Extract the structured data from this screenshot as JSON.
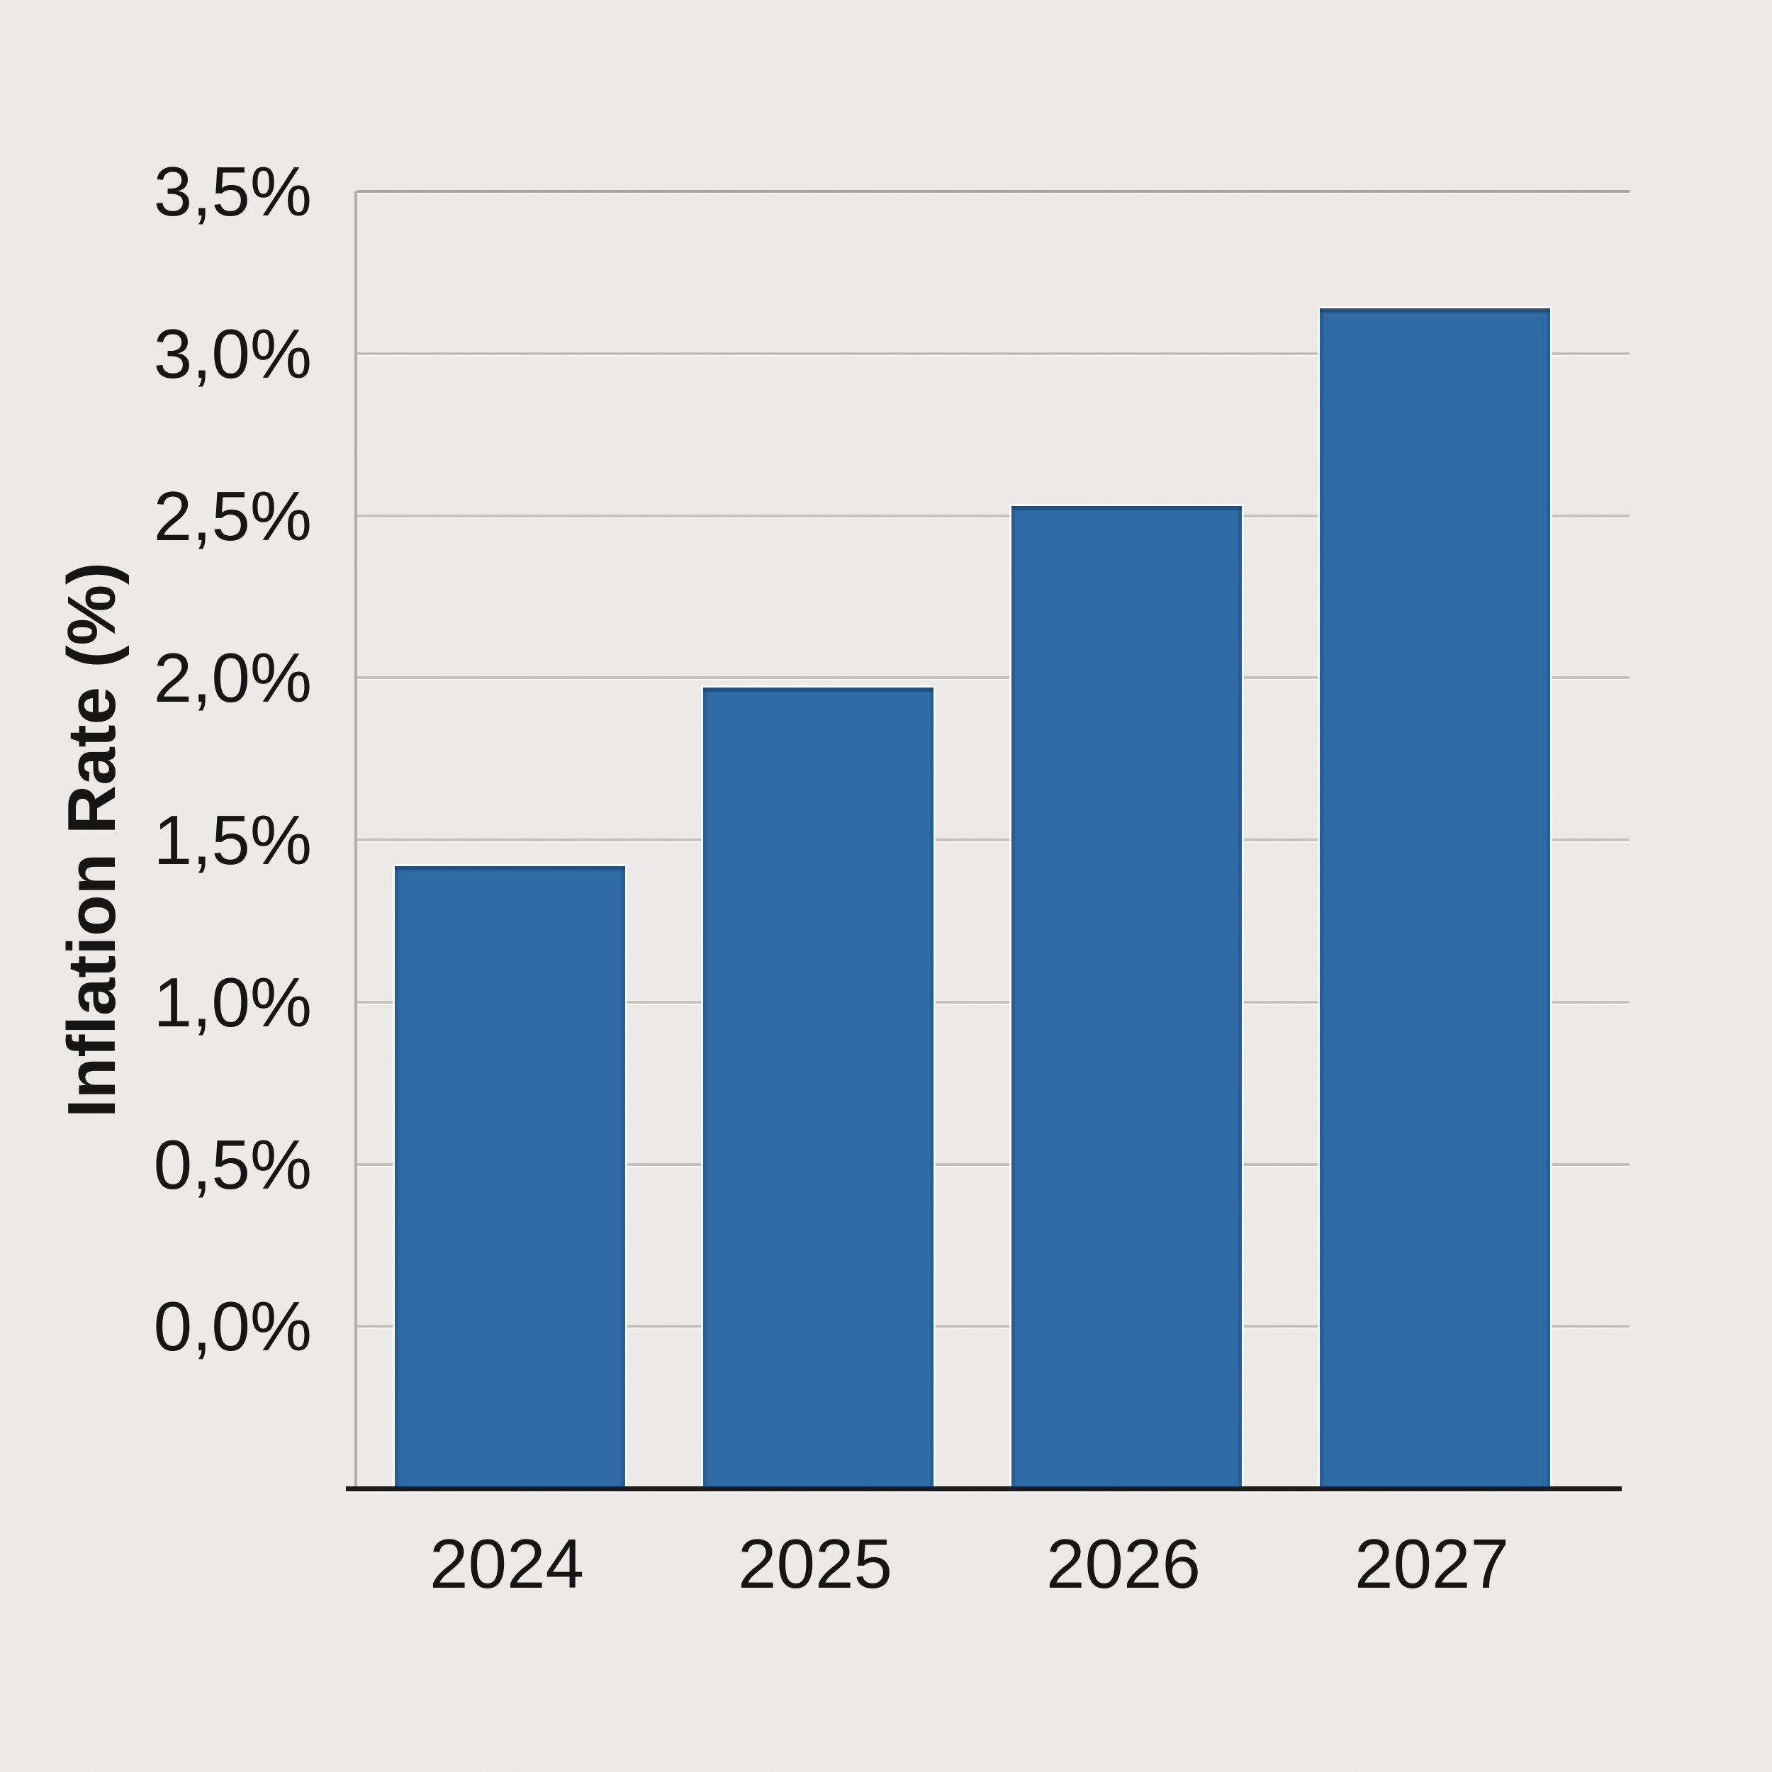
{
  "chart_data": {
    "type": "bar",
    "title": "",
    "xlabel": "",
    "ylabel": "Inflation Rate (%)",
    "categories": [
      "2024",
      "2025",
      "2026",
      "2027"
    ],
    "values": [
      1.42,
      1.97,
      2.53,
      3.14
    ],
    "ylim": [
      -0.5,
      3.5
    ],
    "yticks": [
      {
        "value": 3.5,
        "label": "3,5%"
      },
      {
        "value": 3.0,
        "label": "3,0%"
      },
      {
        "value": 2.5,
        "label": "2,5%"
      },
      {
        "value": 2.0,
        "label": "2,0%"
      },
      {
        "value": 1.5,
        "label": "1,5%"
      },
      {
        "value": 1.0,
        "label": "1,0%"
      },
      {
        "value": 0.5,
        "label": "0,5%"
      },
      {
        "value": 0.0,
        "label": "0,0%"
      }
    ],
    "decimal_separator": ",",
    "grid": "horizontal",
    "legend": "none",
    "colors": {
      "bar": "#2e6ba5",
      "background": "#efeeec",
      "gridline": "#c3c2c0",
      "axis_line": "#1c1c1c",
      "text": "#151515"
    }
  }
}
